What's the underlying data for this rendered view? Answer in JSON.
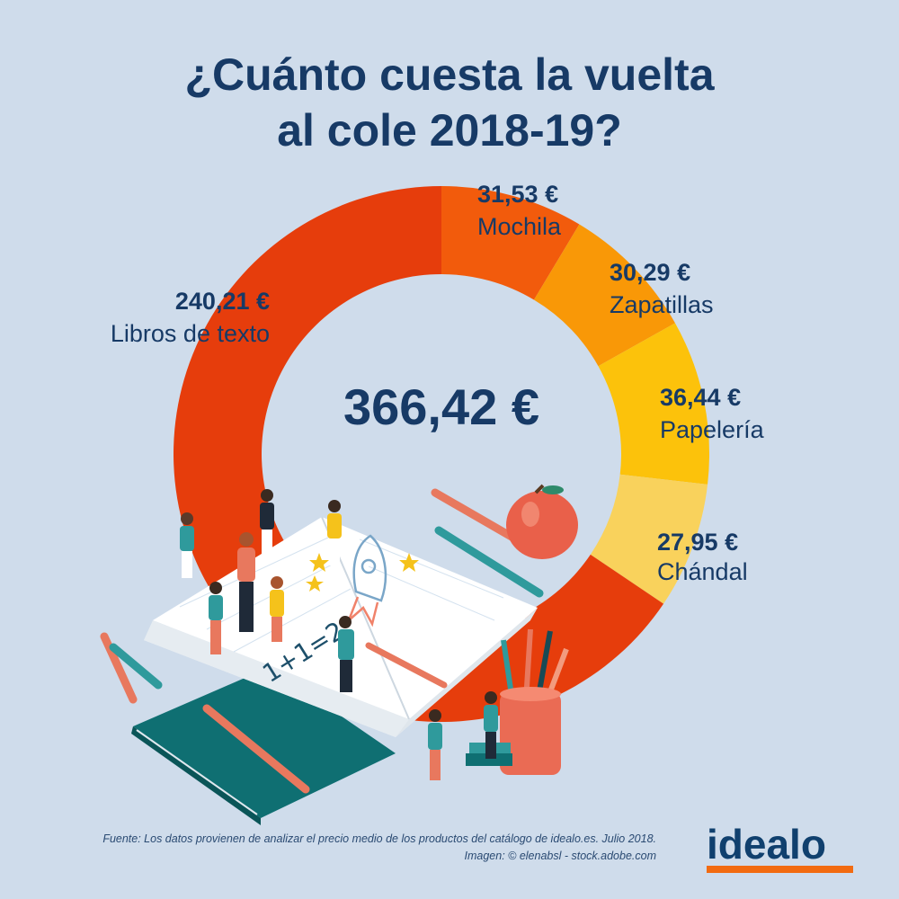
{
  "title": {
    "line1": "¿Cuánto cuesta la vuelta",
    "line2": "al cole 2018-19?"
  },
  "chart_data": {
    "type": "pie",
    "donut": true,
    "total_label": "366,42 €",
    "total": 366.42,
    "slices": [
      {
        "name": "Mochila",
        "value": 31.53,
        "value_label": "31,53 €",
        "color": "#f25b0c"
      },
      {
        "name": "Zapatillas",
        "value": 30.29,
        "value_label": "30,29 €",
        "color": "#f99807"
      },
      {
        "name": "Papelería",
        "value": 36.44,
        "value_label": "36,44 €",
        "color": "#fcc20b"
      },
      {
        "name": "Chándal",
        "value": 27.95,
        "value_label": "27,95 €",
        "color": "#f9d25c"
      },
      {
        "name": "Libros de texto",
        "value": 240.21,
        "value_label": "240,21 €",
        "color": "#e63d0c"
      }
    ]
  },
  "illustration": {
    "description_icons": [
      "open-notebook-icon",
      "apple-icon",
      "pencil-icon",
      "pencil-cup-icon",
      "rocket-drawing-icon",
      "student-figure-icon"
    ],
    "notebook_text": "1+1=2"
  },
  "footer": {
    "source_line1": "Fuente: Los datos provienen de analizar el precio medio de los productos del catálogo de idealo.es. Julio 2018.",
    "source_line2": "Imagen: © elenabsl - stock.adobe.com"
  },
  "brand": {
    "logo_text": "idealo",
    "accent_color": "#f26b11"
  }
}
